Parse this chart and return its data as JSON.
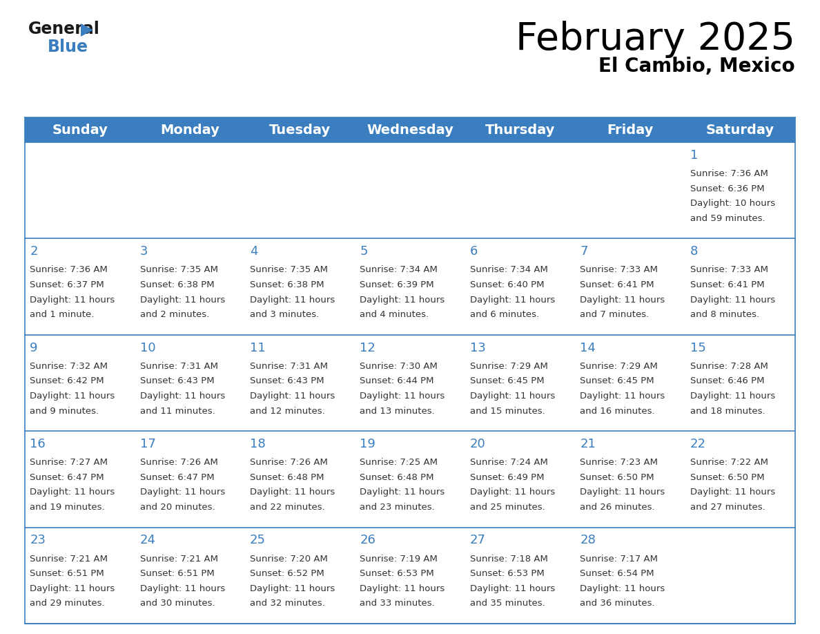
{
  "title": "February 2025",
  "subtitle": "El Cambio, Mexico",
  "header_color": "#3a7ebf",
  "header_text_color": "#ffffff",
  "border_color": "#3a7ebf",
  "text_color": "#333333",
  "day_names": [
    "Sunday",
    "Monday",
    "Tuesday",
    "Wednesday",
    "Thursday",
    "Friday",
    "Saturday"
  ],
  "title_fontsize": 40,
  "subtitle_fontsize": 20,
  "header_fontsize": 14,
  "day_num_fontsize": 13,
  "cell_fontsize": 9.5,
  "days": [
    {
      "date": 1,
      "col": 6,
      "row": 0,
      "sunrise": "7:36 AM",
      "sunset": "6:36 PM",
      "daylight": "10 hours and 59 minutes."
    },
    {
      "date": 2,
      "col": 0,
      "row": 1,
      "sunrise": "7:36 AM",
      "sunset": "6:37 PM",
      "daylight": "11 hours and 1 minute."
    },
    {
      "date": 3,
      "col": 1,
      "row": 1,
      "sunrise": "7:35 AM",
      "sunset": "6:38 PM",
      "daylight": "11 hours and 2 minutes."
    },
    {
      "date": 4,
      "col": 2,
      "row": 1,
      "sunrise": "7:35 AM",
      "sunset": "6:38 PM",
      "daylight": "11 hours and 3 minutes."
    },
    {
      "date": 5,
      "col": 3,
      "row": 1,
      "sunrise": "7:34 AM",
      "sunset": "6:39 PM",
      "daylight": "11 hours and 4 minutes."
    },
    {
      "date": 6,
      "col": 4,
      "row": 1,
      "sunrise": "7:34 AM",
      "sunset": "6:40 PM",
      "daylight": "11 hours and 6 minutes."
    },
    {
      "date": 7,
      "col": 5,
      "row": 1,
      "sunrise": "7:33 AM",
      "sunset": "6:41 PM",
      "daylight": "11 hours and 7 minutes."
    },
    {
      "date": 8,
      "col": 6,
      "row": 1,
      "sunrise": "7:33 AM",
      "sunset": "6:41 PM",
      "daylight": "11 hours and 8 minutes."
    },
    {
      "date": 9,
      "col": 0,
      "row": 2,
      "sunrise": "7:32 AM",
      "sunset": "6:42 PM",
      "daylight": "11 hours and 9 minutes."
    },
    {
      "date": 10,
      "col": 1,
      "row": 2,
      "sunrise": "7:31 AM",
      "sunset": "6:43 PM",
      "daylight": "11 hours and 11 minutes."
    },
    {
      "date": 11,
      "col": 2,
      "row": 2,
      "sunrise": "7:31 AM",
      "sunset": "6:43 PM",
      "daylight": "11 hours and 12 minutes."
    },
    {
      "date": 12,
      "col": 3,
      "row": 2,
      "sunrise": "7:30 AM",
      "sunset": "6:44 PM",
      "daylight": "11 hours and 13 minutes."
    },
    {
      "date": 13,
      "col": 4,
      "row": 2,
      "sunrise": "7:29 AM",
      "sunset": "6:45 PM",
      "daylight": "11 hours and 15 minutes."
    },
    {
      "date": 14,
      "col": 5,
      "row": 2,
      "sunrise": "7:29 AM",
      "sunset": "6:45 PM",
      "daylight": "11 hours and 16 minutes."
    },
    {
      "date": 15,
      "col": 6,
      "row": 2,
      "sunrise": "7:28 AM",
      "sunset": "6:46 PM",
      "daylight": "11 hours and 18 minutes."
    },
    {
      "date": 16,
      "col": 0,
      "row": 3,
      "sunrise": "7:27 AM",
      "sunset": "6:47 PM",
      "daylight": "11 hours and 19 minutes."
    },
    {
      "date": 17,
      "col": 1,
      "row": 3,
      "sunrise": "7:26 AM",
      "sunset": "6:47 PM",
      "daylight": "11 hours and 20 minutes."
    },
    {
      "date": 18,
      "col": 2,
      "row": 3,
      "sunrise": "7:26 AM",
      "sunset": "6:48 PM",
      "daylight": "11 hours and 22 minutes."
    },
    {
      "date": 19,
      "col": 3,
      "row": 3,
      "sunrise": "7:25 AM",
      "sunset": "6:48 PM",
      "daylight": "11 hours and 23 minutes."
    },
    {
      "date": 20,
      "col": 4,
      "row": 3,
      "sunrise": "7:24 AM",
      "sunset": "6:49 PM",
      "daylight": "11 hours and 25 minutes."
    },
    {
      "date": 21,
      "col": 5,
      "row": 3,
      "sunrise": "7:23 AM",
      "sunset": "6:50 PM",
      "daylight": "11 hours and 26 minutes."
    },
    {
      "date": 22,
      "col": 6,
      "row": 3,
      "sunrise": "7:22 AM",
      "sunset": "6:50 PM",
      "daylight": "11 hours and 27 minutes."
    },
    {
      "date": 23,
      "col": 0,
      "row": 4,
      "sunrise": "7:21 AM",
      "sunset": "6:51 PM",
      "daylight": "11 hours and 29 minutes."
    },
    {
      "date": 24,
      "col": 1,
      "row": 4,
      "sunrise": "7:21 AM",
      "sunset": "6:51 PM",
      "daylight": "11 hours and 30 minutes."
    },
    {
      "date": 25,
      "col": 2,
      "row": 4,
      "sunrise": "7:20 AM",
      "sunset": "6:52 PM",
      "daylight": "11 hours and 32 minutes."
    },
    {
      "date": 26,
      "col": 3,
      "row": 4,
      "sunrise": "7:19 AM",
      "sunset": "6:53 PM",
      "daylight": "11 hours and 33 minutes."
    },
    {
      "date": 27,
      "col": 4,
      "row": 4,
      "sunrise": "7:18 AM",
      "sunset": "6:53 PM",
      "daylight": "11 hours and 35 minutes."
    },
    {
      "date": 28,
      "col": 5,
      "row": 4,
      "sunrise": "7:17 AM",
      "sunset": "6:54 PM",
      "daylight": "11 hours and 36 minutes."
    }
  ]
}
